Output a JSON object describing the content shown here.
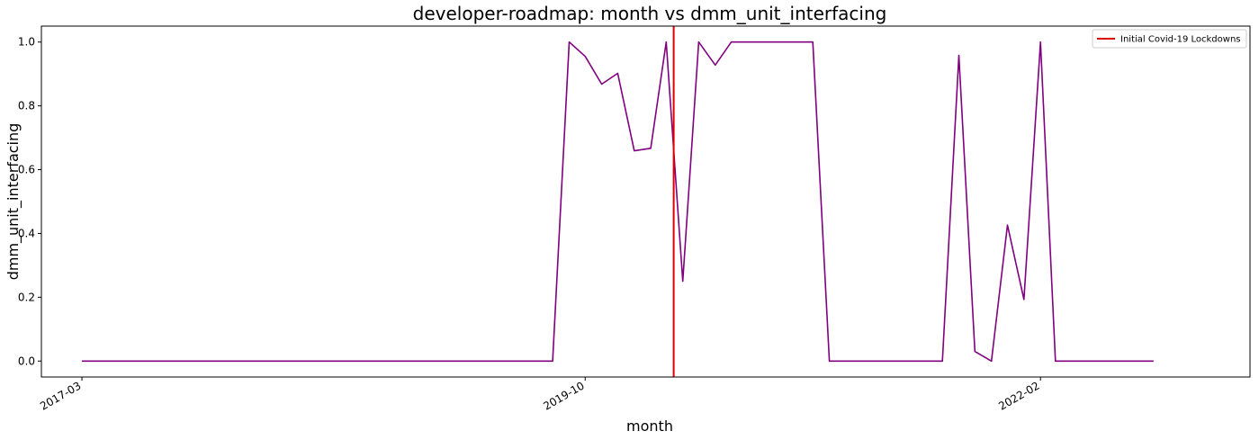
{
  "chart_data": {
    "type": "line",
    "title": "developer-roadmap: month vs dmm_unit_interfacing",
    "xlabel": "month",
    "ylabel": "dmm_unit_interfacing",
    "x_ticks": [
      "2017-03",
      "2019-10",
      "2022-02"
    ],
    "y_ticks": [
      "0.0",
      "0.2",
      "0.4",
      "0.6",
      "0.8",
      "1.0"
    ],
    "xlim": [
      "2016-12-15",
      "2023-03-01"
    ],
    "ylim": [
      -0.05,
      1.05
    ],
    "grid": false,
    "legend_position": "top-right",
    "series": [
      {
        "color": "#800080",
        "points": [
          [
            "2017-03",
            0.0
          ],
          [
            "2019-08",
            0.0
          ],
          [
            "2019-09",
            1.0
          ],
          [
            "2019-10",
            0.955
          ],
          [
            "2019-11",
            0.868
          ],
          [
            "2019-12",
            0.902
          ],
          [
            "2020-01",
            0.659
          ],
          [
            "2020-02",
            0.667
          ],
          [
            "2020-03",
            1.0
          ],
          [
            "2020-04",
            0.25
          ],
          [
            "2020-05",
            1.0
          ],
          [
            "2020-06",
            0.928
          ],
          [
            "2020-07",
            1.0
          ],
          [
            "2020-12",
            1.0
          ],
          [
            "2021-01",
            0.0
          ],
          [
            "2021-08",
            0.0
          ],
          [
            "2021-09",
            0.958
          ],
          [
            "2021-10",
            0.03
          ],
          [
            "2021-11",
            0.0
          ],
          [
            "2021-12",
            0.426
          ],
          [
            "2022-01",
            0.193
          ],
          [
            "2022-02",
            1.0
          ],
          [
            "2022-03",
            0.0
          ],
          [
            "2022-09",
            0.0
          ]
        ]
      }
    ],
    "vlines": [
      {
        "label": "Initial Covid-19 Lockdowns",
        "x": "2020-03-15",
        "color": "#dd0000"
      }
    ],
    "legend": [
      "Initial Covid-19 Lockdowns"
    ]
  }
}
